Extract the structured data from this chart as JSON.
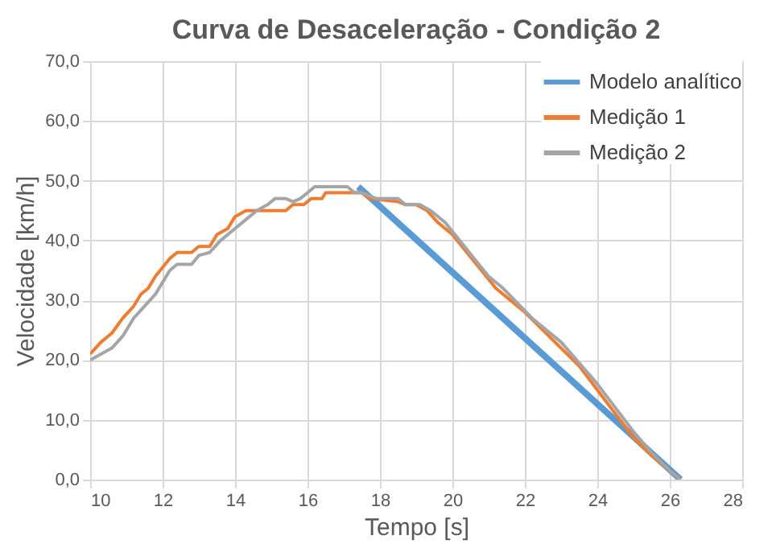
{
  "chart_data": {
    "type": "line",
    "title": "Curva de Desaceleração - Condição 2",
    "xlabel": "Tempo [s]",
    "ylabel": "Velocidade [km/h]",
    "xlim": [
      10,
      28
    ],
    "xticks": [
      10,
      12,
      14,
      16,
      18,
      20,
      22,
      24,
      26,
      28
    ],
    "ylim": [
      0,
      70
    ],
    "yticks": [
      {
        "value": 0,
        "label": "0,0"
      },
      {
        "value": 10,
        "label": "10,0"
      },
      {
        "value": 20,
        "label": "20,0"
      },
      {
        "value": 30,
        "label": "30,0"
      },
      {
        "value": 40,
        "label": "40,0"
      },
      {
        "value": 50,
        "label": "50,0"
      },
      {
        "value": 60,
        "label": "60,0"
      },
      {
        "value": 70,
        "label": "70,0"
      }
    ],
    "grid": true,
    "legend": "top right",
    "series": [
      {
        "name": "Modelo analítico",
        "color": "#5b9bd5",
        "x": [
          17.4,
          26.3
        ],
        "values": [
          49,
          0
        ]
      },
      {
        "name": "Medição 1",
        "color": "#ed7d31",
        "x": [
          10,
          10.3,
          10.6,
          10.9,
          11.2,
          11.4,
          11.6,
          11.8,
          12,
          12.2,
          12.4,
          12.8,
          13,
          13.3,
          13.5,
          13.8,
          14,
          14.3,
          15.4,
          15.6,
          15.9,
          16.1,
          16.4,
          16.5,
          17.5,
          17.7,
          18.5,
          18.7,
          19,
          19.3,
          19.6,
          20,
          20.4,
          20.8,
          21.2,
          21.6,
          22,
          22.5,
          23,
          23.5,
          24,
          24.5,
          25,
          25.5,
          26,
          26.3
        ],
        "values": [
          21,
          23,
          24.5,
          27,
          29,
          31,
          32,
          34,
          35.5,
          37,
          38,
          38,
          39,
          39,
          41,
          42,
          44,
          45,
          45,
          46,
          46,
          47,
          47,
          48,
          48,
          47,
          46.5,
          46,
          46,
          45,
          43,
          41,
          38,
          35,
          32,
          30,
          28,
          25,
          22,
          19,
          15,
          11,
          7,
          4,
          1.5,
          0
        ]
      },
      {
        "name": "Medição 2",
        "color": "#a5a5a5",
        "x": [
          10,
          10.3,
          10.6,
          10.9,
          11.2,
          11.5,
          11.8,
          12,
          12.2,
          12.4,
          12.8,
          13,
          13.3,
          13.6,
          14,
          14.3,
          14.6,
          14.9,
          15.1,
          15.4,
          15.6,
          15.8,
          16,
          16.2,
          17.1,
          17.3,
          17.5,
          17.9,
          18.5,
          18.7,
          19.1,
          19.4,
          19.8,
          20.2,
          20.6,
          21,
          21.4,
          21.8,
          22.2,
          22.6,
          23,
          23.5,
          24,
          24.5,
          25,
          25.5,
          26,
          26.3
        ],
        "values": [
          20,
          21,
          22,
          24,
          27,
          29,
          31,
          33,
          35,
          36,
          36,
          37.5,
          38,
          40,
          42,
          43.5,
          45,
          46,
          47,
          47,
          46.5,
          47,
          48,
          49,
          49,
          48,
          48,
          47,
          47,
          46,
          46,
          45,
          43,
          40,
          37,
          34,
          32,
          29.5,
          27,
          25,
          23,
          19.5,
          16,
          12,
          8,
          4.5,
          1.5,
          0
        ]
      }
    ]
  }
}
